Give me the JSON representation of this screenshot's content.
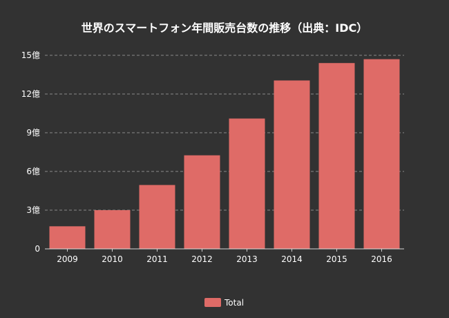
{
  "chart_data": {
    "type": "bar",
    "title": "世界のスマートフォン年間販売台数の推移（出典：IDC）",
    "categories": [
      "2009",
      "2010",
      "2011",
      "2012",
      "2013",
      "2014",
      "2015",
      "2016"
    ],
    "series": [
      {
        "name": "Total",
        "values": [
          1.75,
          3.0,
          4.95,
          7.25,
          10.1,
          13.05,
          14.4,
          14.7
        ]
      }
    ],
    "ylim": [
      0,
      15
    ],
    "yticks": [
      0,
      3,
      6,
      9,
      12,
      15
    ],
    "ytick_labels": [
      "0",
      "3億",
      "6億",
      "9億",
      "12億",
      "15億"
    ],
    "grid": true,
    "legend_position": "bottom-center",
    "bar_color": "#df6b67",
    "background": "#323232",
    "text_color": "#ffffff",
    "grid_color": "#8a8a8a"
  }
}
